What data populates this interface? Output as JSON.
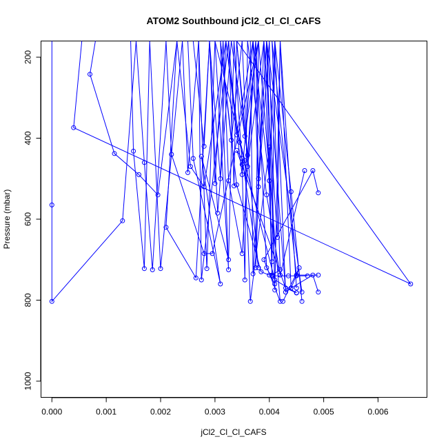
{
  "chart_data": {
    "type": "line",
    "title": "ATOM2 Southbound jCl2_Cl_Cl_CAFS",
    "xlabel": "jCl2_Cl_Cl_CAFS",
    "ylabel": "Pressure (mbar)",
    "xlim": [
      -0.0002,
      0.0069
    ],
    "ylim": [
      1040,
      160
    ],
    "y_reversed": true,
    "x_ticks": [
      0.0,
      0.001,
      0.002,
      0.003,
      0.004,
      0.005,
      0.006
    ],
    "x_tick_labels": [
      "0.000",
      "0.001",
      "0.002",
      "0.003",
      "0.004",
      "0.005",
      "0.006"
    ],
    "y_ticks": [
      200,
      400,
      600,
      800,
      1000
    ],
    "y_tick_labels": [
      "200",
      "400",
      "600",
      "800",
      "1000"
    ],
    "grid": false,
    "legend": "none",
    "color": "#0000ff",
    "marker": "open-circle",
    "series": [
      {
        "x": [
          0.0,
          0.0,
          0.0,
          0.0013,
          0.00155,
          0.0017,
          0.00185,
          0.0021
        ],
        "y": [
          160,
          565,
          803,
          604,
          160,
          460,
          725,
          160
        ]
      },
      {
        "x": [
          0.0008,
          0.0007,
          0.00115,
          0.0016,
          0.00195,
          0.0023,
          0.00255,
          0.0028,
          0.0032,
          0.00345,
          0.0041,
          0.0045,
          0.0045
        ],
        "y": [
          160,
          242,
          438,
          490,
          540,
          160,
          470,
          520,
          160,
          410,
          750,
          782,
          782
        ]
      },
      {
        "x": [
          0.00055,
          0.0004,
          0.0066,
          0.0034,
          0.0038,
          0.0035,
          0.0034,
          0.0043,
          0.0045
        ],
        "y": [
          160,
          374,
          760,
          160,
          720,
          450,
          430,
          770,
          782
        ]
      },
      {
        "x": [
          0.00145,
          0.0015,
          0.0017,
          0.0018,
          0.002,
          0.0024,
          0.0025,
          0.0027,
          0.00285,
          0.003,
          0.00325,
          0.0031,
          0.0034,
          0.00385,
          0.004
        ],
        "y": [
          160,
          432,
          722,
          160,
          722,
          160,
          485,
          160,
          722,
          160,
          725,
          160,
          515,
          730,
          738
        ]
      },
      {
        "x": [
          0.0021,
          0.0022,
          0.0028,
          0.00295,
          0.0038,
          0.00375,
          0.0039,
          0.00415,
          0.0042,
          0.0044,
          0.0048,
          0.0049
        ],
        "y": [
          160,
          440,
          685,
          685,
          160,
          720,
          160,
          645,
          160,
          770,
          738,
          780
        ]
      },
      {
        "x": [
          0.0023,
          0.0021,
          0.00265,
          0.0029,
          0.003,
          0.00315,
          0.00325,
          0.0035,
          0.00375,
          0.00395,
          0.0041,
          0.00395,
          0.0046
        ],
        "y": [
          160,
          620,
          745,
          160,
          512,
          160,
          505,
          685,
          160,
          720,
          760,
          160,
          780
        ]
      },
      {
        "x": [
          0.0025,
          0.0026,
          0.0031,
          0.00275,
          0.00325,
          0.00335,
          0.0035,
          0.00355,
          0.0036,
          0.00395,
          0.0042,
          0.00465
        ],
        "y": [
          160,
          450,
          760,
          445,
          700,
          160,
          465,
          750,
          160,
          540,
          738,
          480
        ]
      },
      {
        "x": [
          0.0026,
          0.0028,
          0.0029,
          0.0031,
          0.0032,
          0.0035,
          0.0037,
          0.004,
          0.0041,
          0.0044,
          0.0046
        ],
        "y": [
          160,
          420,
          160,
          500,
          160,
          490,
          160,
          505,
          160,
          532,
          803
        ]
      },
      {
        "x": [
          0.0027,
          0.00275,
          0.00325,
          0.00335,
          0.0034,
          0.00355,
          0.0038,
          0.0042,
          0.0039,
          0.0048,
          0.0049
        ],
        "y": [
          160,
          750,
          160,
          518,
          160,
          395,
          160,
          803,
          700,
          480,
          535
        ]
      },
      {
        "x": [
          0.00285,
          0.0034,
          0.00365,
          0.0037,
          0.00395,
          0.0043,
          0.0044,
          0.0045,
          0.0049
        ],
        "y": [
          160,
          160,
          160,
          735,
          160,
          780,
          770,
          738,
          738
        ]
      },
      {
        "x": [
          0.003,
          0.00355,
          0.00365,
          0.004,
          0.00405,
          0.0042,
          0.00405,
          0.0045,
          0.00455,
          0.00425
        ],
        "y": [
          160,
          455,
          803,
          422,
          738,
          725,
          160,
          740,
          720,
          803
        ]
      },
      {
        "x": [
          0.0031,
          0.0033,
          0.0035,
          0.0036,
          0.0039,
          0.00405,
          0.0041,
          0.0043
        ],
        "y": [
          160,
          405,
          160,
          470,
          160,
          705,
          160,
          780
        ]
      },
      {
        "x": [
          0.00325,
          0.0034,
          0.0037,
          0.0038,
          0.004,
          0.0041,
          0.0042,
          0.0045
        ],
        "y": [
          160,
          392,
          160,
          520,
          160,
          775,
          160,
          770
        ]
      },
      {
        "x": [
          0.0029,
          0.00305,
          0.0033,
          0.0036,
          0.00375,
          0.0038,
          0.00395,
          0.004,
          0.00405,
          0.00435,
          0.0047
        ],
        "y": [
          160,
          585,
          160,
          442,
          160,
          500,
          160,
          505,
          740,
          740,
          740
        ]
      }
    ]
  }
}
